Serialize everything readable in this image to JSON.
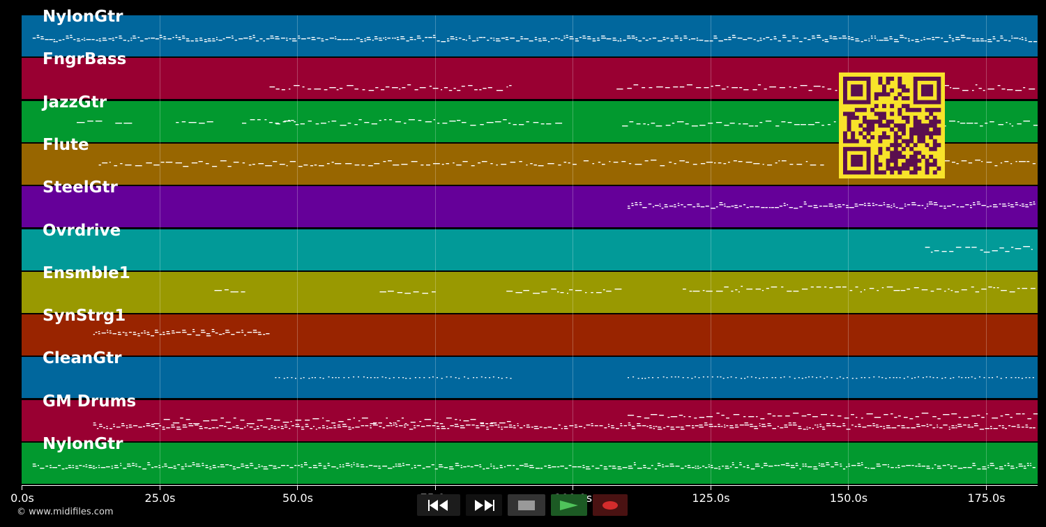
{
  "tracks": [
    {
      "label": "NylonGtr",
      "color": "#01679d"
    },
    {
      "label": "FngrBass",
      "color": "#990032"
    },
    {
      "label": "JazzGtr",
      "color": "#02992f"
    },
    {
      "label": "Flute",
      "color": "#986600"
    },
    {
      "label": "SteelGtr",
      "color": "#650099"
    },
    {
      "label": "Ovrdrive",
      "color": "#029a98"
    },
    {
      "label": "Ensmble1",
      "color": "#999901"
    },
    {
      "label": "SynStrg1",
      "color": "#992400"
    },
    {
      "label": "CleanGtr",
      "color": "#01679d"
    },
    {
      "label": "GM Drums",
      "color": "#990032"
    },
    {
      "label": "NylonGtr",
      "color": "#02992f"
    }
  ],
  "timeline": {
    "ticks": [
      "0.0s",
      "25.0s",
      "50.0s",
      "75.0s",
      "100.0s",
      "125.0s",
      "150.0s",
      "175.0s"
    ],
    "tick_values": [
      0,
      25,
      50,
      75,
      100,
      125,
      150,
      175
    ],
    "max_seconds": 184.2
  },
  "transport": {
    "rewind_icon": "rewind-icon",
    "forward_icon": "fast-forward-icon",
    "stop_icon": "stop-icon",
    "play_icon": "play-icon",
    "record_icon": "record-icon"
  },
  "footer": {
    "copyright": "© www.midifiles.com"
  },
  "qr_code": {
    "fg": "#5a0f4f",
    "bg": "#f8e32a"
  }
}
